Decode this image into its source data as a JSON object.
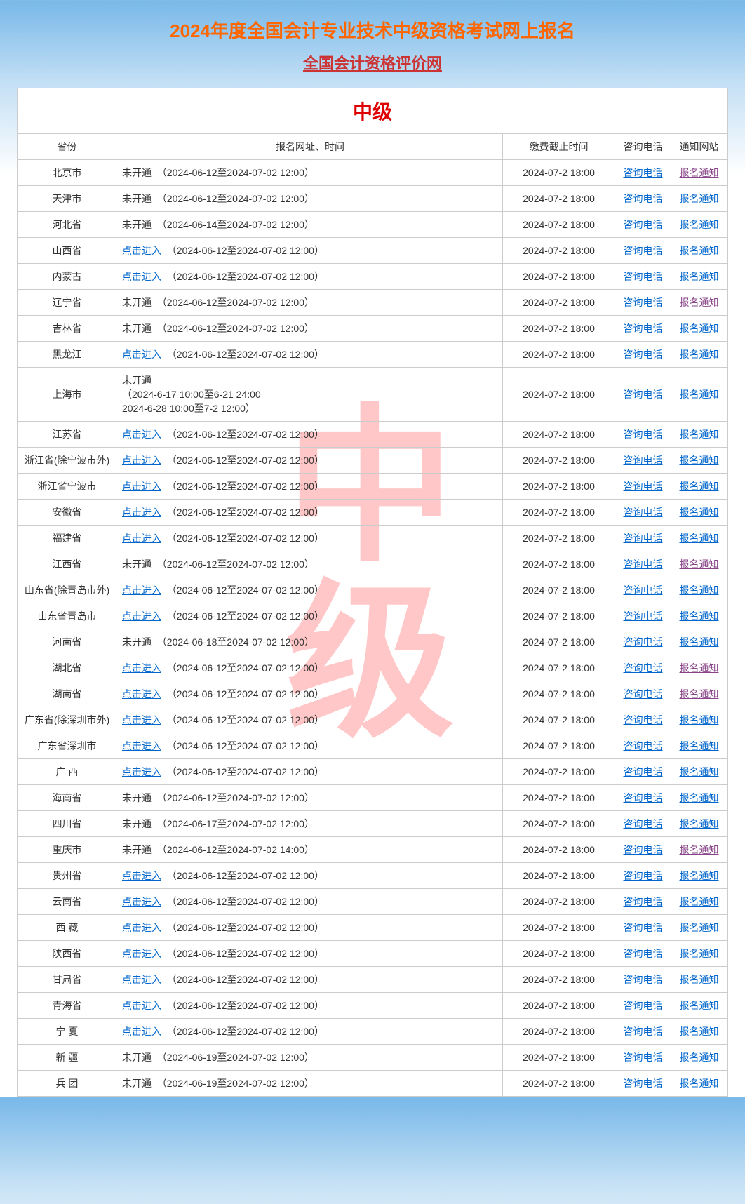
{
  "page_title": "2024年度全国会计专业技术中级资格考试网上报名",
  "subtitle_link": "全国会计资格评价网",
  "level_header": "中级",
  "watermark": "中级",
  "columns": {
    "province": "省份",
    "registration": "报名网址、时间",
    "deadline": "缴费截止时间",
    "phone": "咨询电话",
    "notice": "通知网站"
  },
  "status_labels": {
    "not_open": "未开通",
    "click_enter": "点击进入"
  },
  "link_labels": {
    "phone": "咨询电话",
    "notice": "报名通知"
  },
  "rows": [
    {
      "province": "北京市",
      "status": "not_open",
      "period": "（2024-06-12至2024-07-02 12:00）",
      "deadline": "2024-07-2 18:00",
      "notice_visited": true
    },
    {
      "province": "天津市",
      "status": "not_open",
      "period": "（2024-06-12至2024-07-02 12:00）",
      "deadline": "2024-07-2 18:00",
      "notice_visited": false
    },
    {
      "province": "河北省",
      "status": "not_open",
      "period": "（2024-06-14至2024-07-02 12:00）",
      "deadline": "2024-07-2 18:00",
      "notice_visited": false
    },
    {
      "province": "山西省",
      "status": "click",
      "period": "（2024-06-12至2024-07-02 12:00）",
      "deadline": "2024-07-2 18:00",
      "notice_visited": false
    },
    {
      "province": "内蒙古",
      "status": "click",
      "period": "（2024-06-12至2024-07-02 12:00）",
      "deadline": "2024-07-2 18:00",
      "notice_visited": false
    },
    {
      "province": "辽宁省",
      "status": "not_open",
      "period": "（2024-06-12至2024-07-02 12:00）",
      "deadline": "2024-07-2 18:00",
      "notice_visited": true
    },
    {
      "province": "吉林省",
      "status": "not_open",
      "period": "（2024-06-12至2024-07-02 12:00）",
      "deadline": "2024-07-2 18:00",
      "notice_visited": false
    },
    {
      "province": "黑龙江",
      "status": "click",
      "period": "（2024-06-12至2024-07-02 12:00）",
      "deadline": "2024-07-2 18:00",
      "notice_visited": false
    },
    {
      "province": "上海市",
      "status": "not_open",
      "period": "\n（2024-6-17 10:00至6-21 24:00\n2024-6-28 10:00至7-2 12:00）",
      "deadline": "2024-07-2 18:00",
      "notice_visited": false,
      "multiline": true
    },
    {
      "province": "江苏省",
      "status": "click",
      "period": "（2024-06-12至2024-07-02 12:00）",
      "deadline": "2024-07-2 18:00",
      "notice_visited": false
    },
    {
      "province": "浙江省(除宁波市外)",
      "status": "click",
      "period": "（2024-06-12至2024-07-02 12:00）",
      "deadline": "2024-07-2 18:00",
      "notice_visited": false
    },
    {
      "province": "浙江省宁波市",
      "status": "click",
      "period": "（2024-06-12至2024-07-02 12:00）",
      "deadline": "2024-07-2 18:00",
      "notice_visited": false
    },
    {
      "province": "安徽省",
      "status": "click",
      "period": "（2024-06-12至2024-07-02 12:00）",
      "deadline": "2024-07-2 18:00",
      "notice_visited": false
    },
    {
      "province": "福建省",
      "status": "click",
      "period": "（2024-06-12至2024-07-02 12:00）",
      "deadline": "2024-07-2 18:00",
      "notice_visited": false
    },
    {
      "province": "江西省",
      "status": "not_open",
      "period": "（2024-06-12至2024-07-02 12:00）",
      "deadline": "2024-07-2 18:00",
      "notice_visited": true
    },
    {
      "province": "山东省(除青岛市外)",
      "status": "click",
      "period": "（2024-06-12至2024-07-02 12:00）",
      "deadline": "2024-07-2 18:00",
      "notice_visited": false
    },
    {
      "province": "山东省青岛市",
      "status": "click",
      "period": "（2024-06-12至2024-07-02 12:00）",
      "deadline": "2024-07-2 18:00",
      "notice_visited": false
    },
    {
      "province": "河南省",
      "status": "not_open",
      "period": "（2024-06-18至2024-07-02 12:00）",
      "deadline": "2024-07-2 18:00",
      "notice_visited": false
    },
    {
      "province": "湖北省",
      "status": "click",
      "period": "（2024-06-12至2024-07-02 12:00）",
      "deadline": "2024-07-2 18:00",
      "notice_visited": true
    },
    {
      "province": "湖南省",
      "status": "click",
      "period": "（2024-06-12至2024-07-02 12:00）",
      "deadline": "2024-07-2 18:00",
      "notice_visited": true
    },
    {
      "province": "广东省(除深圳市外)",
      "status": "click",
      "period": "（2024-06-12至2024-07-02 12:00）",
      "deadline": "2024-07-2 18:00",
      "notice_visited": false
    },
    {
      "province": "广东省深圳市",
      "status": "click",
      "period": "（2024-06-12至2024-07-02 12:00）",
      "deadline": "2024-07-2 18:00",
      "notice_visited": false
    },
    {
      "province": "广 西",
      "status": "click",
      "period": "（2024-06-12至2024-07-02 12:00）",
      "deadline": "2024-07-2 18:00",
      "notice_visited": false
    },
    {
      "province": "海南省",
      "status": "not_open",
      "period": "（2024-06-12至2024-07-02 12:00）",
      "deadline": "2024-07-2 18:00",
      "notice_visited": false
    },
    {
      "province": "四川省",
      "status": "not_open",
      "period": "（2024-06-17至2024-07-02 12:00）",
      "deadline": "2024-07-2 18:00",
      "notice_visited": false
    },
    {
      "province": "重庆市",
      "status": "not_open",
      "period": "（2024-06-12至2024-07-02 14:00）",
      "deadline": "2024-07-2 18:00",
      "notice_visited": true
    },
    {
      "province": "贵州省",
      "status": "click",
      "period": "（2024-06-12至2024-07-02 12:00）",
      "deadline": "2024-07-2 18:00",
      "notice_visited": false
    },
    {
      "province": "云南省",
      "status": "click",
      "period": "（2024-06-12至2024-07-02 12:00）",
      "deadline": "2024-07-2 18:00",
      "notice_visited": false
    },
    {
      "province": "西 藏",
      "status": "click",
      "period": "（2024-06-12至2024-07-02 12:00）",
      "deadline": "2024-07-2 18:00",
      "notice_visited": false
    },
    {
      "province": "陕西省",
      "status": "click",
      "period": "（2024-06-12至2024-07-02 12:00）",
      "deadline": "2024-07-2 18:00",
      "notice_visited": false
    },
    {
      "province": "甘肃省",
      "status": "click",
      "period": "（2024-06-12至2024-07-02 12:00）",
      "deadline": "2024-07-2 18:00",
      "notice_visited": false
    },
    {
      "province": "青海省",
      "status": "click",
      "period": "（2024-06-12至2024-07-02 12:00）",
      "deadline": "2024-07-2 18:00",
      "notice_visited": false
    },
    {
      "province": "宁 夏",
      "status": "click",
      "period": "（2024-06-12至2024-07-02 12:00）",
      "deadline": "2024-07-2 18:00",
      "notice_visited": false
    },
    {
      "province": "新 疆",
      "status": "not_open",
      "period": "（2024-06-19至2024-07-02 12:00）",
      "deadline": "2024-07-2 18:00",
      "notice_visited": false
    },
    {
      "province": "兵 团",
      "status": "not_open",
      "period": "（2024-06-19至2024-07-02 12:00）",
      "deadline": "2024-07-2 18:00",
      "notice_visited": false
    }
  ]
}
